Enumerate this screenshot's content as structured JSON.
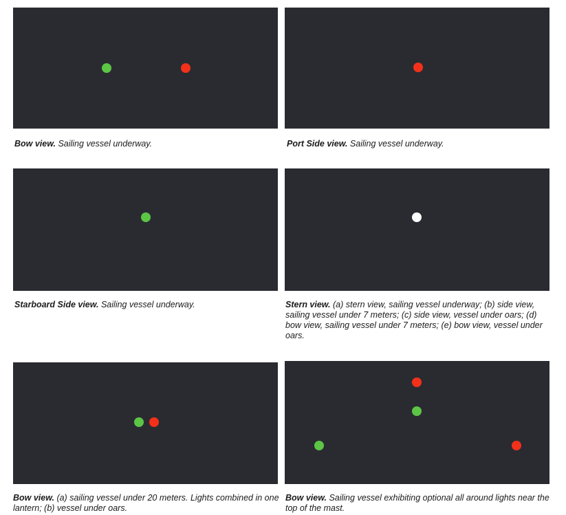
{
  "colors": {
    "panel_bg": "#2a2b31",
    "green_light": "#5cc545",
    "red_light": "#f3311a",
    "white_light": "#ffffff"
  },
  "figures": [
    {
      "id": "bow-view-1",
      "lights": [
        {
          "color": "green"
        },
        {
          "color": "red"
        }
      ],
      "caption_title": "Bow view.",
      "caption_text": " Sailing vessel underway."
    },
    {
      "id": "port-side-view",
      "lights": [
        {
          "color": "red"
        }
      ],
      "caption_title": "Port Side view.",
      "caption_text": " Sailing vessel underway."
    },
    {
      "id": "starboard-side-view",
      "lights": [
        {
          "color": "green"
        }
      ],
      "caption_title": "Starboard Side view.",
      "caption_text": " Sailing vessel underway."
    },
    {
      "id": "stern-view",
      "lights": [
        {
          "color": "white"
        }
      ],
      "caption_title": "Stern view.",
      "caption_text": " (a) stern view, sailing vessel underway; (b) side view, sailing vessel under 7 meters; (c) side view, vessel under oars; (d) bow view, sailing vessel under 7 meters; (e) bow view, vessel under oars."
    },
    {
      "id": "bow-view-lantern",
      "lights": [
        {
          "color": "green"
        },
        {
          "color": "red"
        }
      ],
      "caption_title": "Bow view.",
      "caption_text": " (a) sailing vessel under 20 meters. Lights combined in one lantern; (b) vessel under oars."
    },
    {
      "id": "bow-view-masthead",
      "lights": [
        {
          "color": "red"
        },
        {
          "color": "green"
        },
        {
          "color": "green"
        },
        {
          "color": "red"
        }
      ],
      "caption_title": "Bow view.",
      "caption_text": " Sailing vessel exhibiting optional all around lights near the top of the mast."
    }
  ]
}
